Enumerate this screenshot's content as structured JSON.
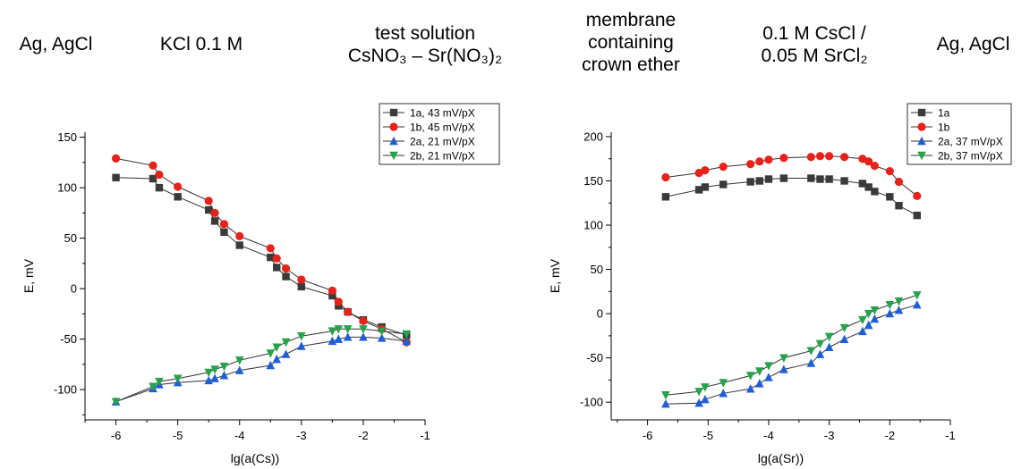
{
  "header": {
    "cells": [
      {
        "lines": [
          "Ag, AgCl"
        ]
      },
      {
        "lines": [
          "KCl 0.1 M"
        ]
      },
      {
        "lines": [
          "test solution",
          "CsNO₃ – Sr(NO₃)₂"
        ]
      },
      {
        "lines": [
          "membrane",
          "containing",
          "crown ether"
        ]
      },
      {
        "lines": [
          "0.1 M CsCl /",
          "0.05 M SrCl₂"
        ]
      },
      {
        "lines": [
          "Ag, AgCl"
        ]
      }
    ]
  },
  "chart_data": [
    {
      "type": "line",
      "xlabel": "lg(a(Cs))",
      "ylabel": "E, mV",
      "xlim": [
        -6.5,
        -1.0
      ],
      "ylim": [
        -130,
        155
      ],
      "xticks": [
        -6,
        -5,
        -4,
        -3,
        -2,
        -1
      ],
      "yticks": [
        -100,
        -50,
        0,
        50,
        100,
        150
      ],
      "grid": false,
      "legend_position": "top-right",
      "series": [
        {
          "name": "1a, 43 mV/pX",
          "color": "#3a3a3a",
          "marker": "square",
          "points": [
            [
              -6.0,
              110
            ],
            [
              -5.4,
              109
            ],
            [
              -5.3,
              100
            ],
            [
              -5.0,
              91
            ],
            [
              -4.5,
              78
            ],
            [
              -4.4,
              67
            ],
            [
              -4.25,
              56
            ],
            [
              -4.0,
              43
            ],
            [
              -3.5,
              31
            ],
            [
              -3.4,
              21
            ],
            [
              -3.25,
              12
            ],
            [
              -3.0,
              2
            ],
            [
              -2.5,
              -7
            ],
            [
              -2.4,
              -17
            ],
            [
              -2.25,
              -23
            ],
            [
              -2.0,
              -31
            ],
            [
              -1.7,
              -38
            ],
            [
              -1.3,
              -46
            ]
          ]
        },
        {
          "name": "1b, 45 mV/pX",
          "color": "#e8211b",
          "marker": "circle",
          "points": [
            [
              -6.0,
              129
            ],
            [
              -5.4,
              122
            ],
            [
              -5.3,
              113
            ],
            [
              -5.0,
              101
            ],
            [
              -4.5,
              87
            ],
            [
              -4.4,
              75
            ],
            [
              -4.25,
              64
            ],
            [
              -4.0,
              52
            ],
            [
              -3.5,
              40
            ],
            [
              -3.4,
              30
            ],
            [
              -3.25,
              20
            ],
            [
              -3.0,
              9
            ],
            [
              -2.5,
              -2
            ],
            [
              -2.4,
              -13
            ],
            [
              -2.25,
              -23
            ],
            [
              -2.0,
              -32
            ],
            [
              -1.7,
              -40
            ],
            [
              -1.3,
              -53
            ]
          ]
        },
        {
          "name": "2a, 21 mV/pX",
          "color": "#1f5fd6",
          "marker": "triangle-up",
          "points": [
            [
              -6.0,
              -112
            ],
            [
              -5.4,
              -99
            ],
            [
              -5.3,
              -95
            ],
            [
              -5.0,
              -93
            ],
            [
              -4.5,
              -91
            ],
            [
              -4.4,
              -89
            ],
            [
              -4.25,
              -86
            ],
            [
              -4.0,
              -81
            ],
            [
              -3.5,
              -76
            ],
            [
              -3.4,
              -70
            ],
            [
              -3.25,
              -65
            ],
            [
              -3.0,
              -57
            ],
            [
              -2.5,
              -52
            ],
            [
              -2.4,
              -50
            ],
            [
              -2.25,
              -48
            ],
            [
              -2.0,
              -48
            ],
            [
              -1.7,
              -49
            ],
            [
              -1.3,
              -52
            ]
          ]
        },
        {
          "name": "2b, 21 mV/pX",
          "color": "#25a24a",
          "marker": "triangle-down",
          "points": [
            [
              -6.0,
              -112
            ],
            [
              -5.4,
              -97
            ],
            [
              -5.3,
              -92
            ],
            [
              -5.0,
              -89
            ],
            [
              -4.5,
              -83
            ],
            [
              -4.4,
              -80
            ],
            [
              -4.25,
              -77
            ],
            [
              -4.0,
              -71
            ],
            [
              -3.5,
              -64
            ],
            [
              -3.4,
              -58
            ],
            [
              -3.25,
              -53
            ],
            [
              -3.0,
              -47
            ],
            [
              -2.5,
              -42
            ],
            [
              -2.4,
              -40
            ],
            [
              -2.25,
              -40
            ],
            [
              -2.0,
              -40
            ],
            [
              -1.7,
              -42
            ],
            [
              -1.3,
              -45
            ]
          ]
        }
      ]
    },
    {
      "type": "line",
      "xlabel": "lg(a(Sr))",
      "ylabel": "E, mV",
      "xlim": [
        -6.6,
        -1.0
      ],
      "ylim": [
        -120,
        205
      ],
      "xticks": [
        -6,
        -5,
        -4,
        -3,
        -2,
        -1
      ],
      "yticks": [
        -100,
        -50,
        0,
        50,
        100,
        150,
        200
      ],
      "grid": false,
      "legend_position": "top-right",
      "series": [
        {
          "name": "1a",
          "color": "#3a3a3a",
          "marker": "square",
          "points": [
            [
              -5.7,
              132
            ],
            [
              -5.15,
              140
            ],
            [
              -5.05,
              143
            ],
            [
              -4.75,
              146
            ],
            [
              -4.3,
              149
            ],
            [
              -4.15,
              150
            ],
            [
              -4.0,
              152
            ],
            [
              -3.75,
              153
            ],
            [
              -3.3,
              153
            ],
            [
              -3.15,
              152
            ],
            [
              -3.0,
              152
            ],
            [
              -2.75,
              150
            ],
            [
              -2.45,
              147
            ],
            [
              -2.35,
              143
            ],
            [
              -2.25,
              138
            ],
            [
              -2.0,
              132
            ],
            [
              -1.85,
              122
            ],
            [
              -1.55,
              111
            ]
          ]
        },
        {
          "name": "1b",
          "color": "#e8211b",
          "marker": "circle",
          "points": [
            [
              -5.7,
              154
            ],
            [
              -5.15,
              159
            ],
            [
              -5.05,
              162
            ],
            [
              -4.75,
              166
            ],
            [
              -4.3,
              169
            ],
            [
              -4.15,
              172
            ],
            [
              -4.0,
              174
            ],
            [
              -3.75,
              176
            ],
            [
              -3.3,
              177
            ],
            [
              -3.15,
              178
            ],
            [
              -3.0,
              178
            ],
            [
              -2.75,
              177
            ],
            [
              -2.45,
              175
            ],
            [
              -2.35,
              172
            ],
            [
              -2.25,
              167
            ],
            [
              -2.0,
              161
            ],
            [
              -1.85,
              149
            ],
            [
              -1.55,
              133
            ]
          ]
        },
        {
          "name": "2a,  37 mV/pX",
          "color": "#1f5fd6",
          "marker": "triangle-up",
          "points": [
            [
              -5.7,
              -102
            ],
            [
              -5.15,
              -101
            ],
            [
              -5.05,
              -97
            ],
            [
              -4.75,
              -90
            ],
            [
              -4.3,
              -85
            ],
            [
              -4.15,
              -79
            ],
            [
              -4.0,
              -72
            ],
            [
              -3.75,
              -63
            ],
            [
              -3.3,
              -56
            ],
            [
              -3.15,
              -46
            ],
            [
              -3.0,
              -38
            ],
            [
              -2.75,
              -29
            ],
            [
              -2.45,
              -20
            ],
            [
              -2.35,
              -13
            ],
            [
              -2.25,
              -6
            ],
            [
              -2.0,
              0
            ],
            [
              -1.85,
              4
            ],
            [
              -1.55,
              10
            ]
          ]
        },
        {
          "name": "2b, 37 mV/pX",
          "color": "#25a24a",
          "marker": "triangle-down",
          "points": [
            [
              -5.7,
              -92
            ],
            [
              -5.15,
              -88
            ],
            [
              -5.05,
              -83
            ],
            [
              -4.75,
              -78
            ],
            [
              -4.3,
              -70
            ],
            [
              -4.15,
              -65
            ],
            [
              -4.0,
              -59
            ],
            [
              -3.75,
              -50
            ],
            [
              -3.3,
              -42
            ],
            [
              -3.15,
              -34
            ],
            [
              -3.0,
              -26
            ],
            [
              -2.75,
              -16
            ],
            [
              -2.45,
              -7
            ],
            [
              -2.35,
              0
            ],
            [
              -2.25,
              4
            ],
            [
              -2.0,
              10
            ],
            [
              -1.85,
              14
            ],
            [
              -1.55,
              21
            ]
          ]
        }
      ]
    }
  ]
}
